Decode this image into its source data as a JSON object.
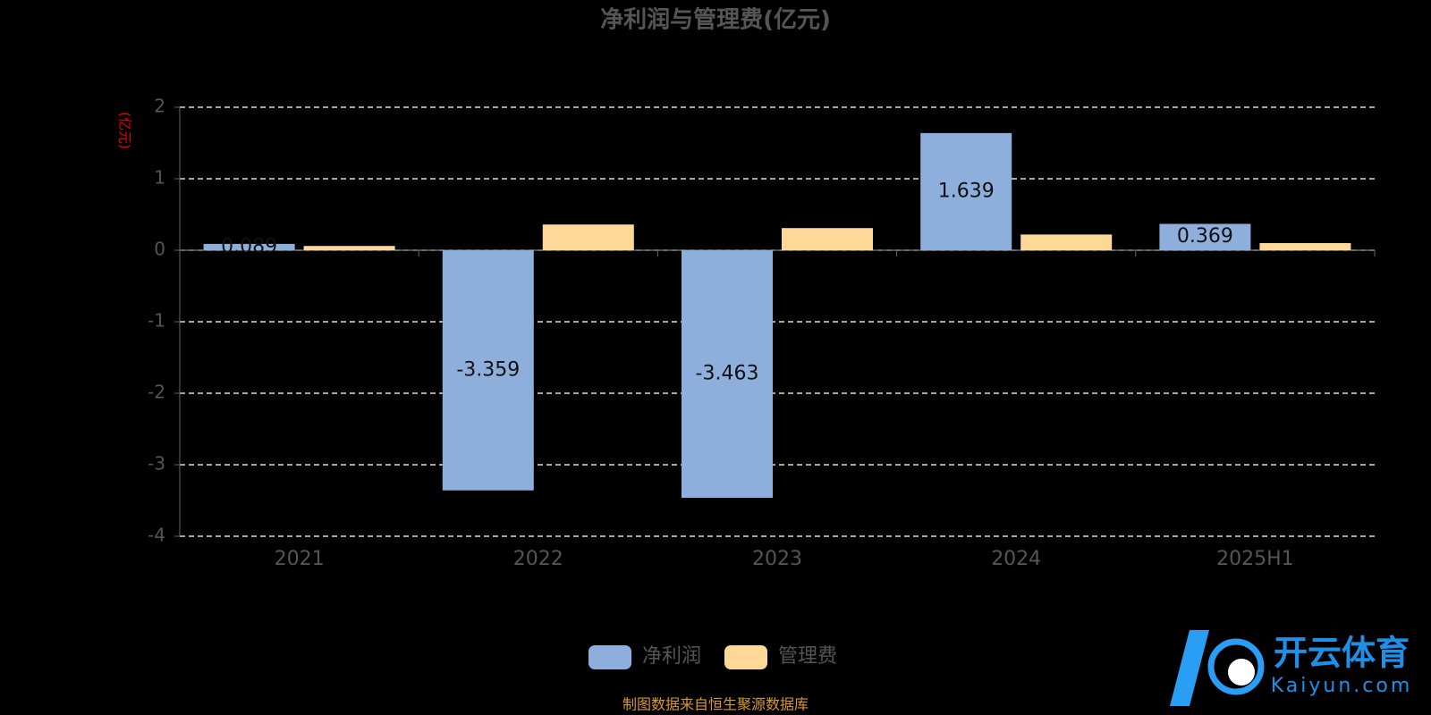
{
  "chart_data": {
    "type": "bar",
    "title": "净利润与管理费(亿元)",
    "y_label": "(亿元)",
    "categories": [
      "2021",
      "2022",
      "2023",
      "2024",
      "2025H1"
    ],
    "series": [
      {
        "name": "净利润",
        "color": "#8eaedb",
        "values": [
          0.089,
          -3.359,
          -3.463,
          1.639,
          0.369
        ]
      },
      {
        "name": "管理费",
        "color": "#fdd896",
        "values": [
          0.06,
          0.36,
          0.31,
          0.22,
          0.1
        ]
      }
    ],
    "ylim": [
      -4,
      2
    ],
    "yticks": [
      -4,
      -3,
      -2,
      -1,
      0,
      1,
      2
    ],
    "grid": true,
    "legend": "bottom",
    "source": "制图数据来自恒生聚源数据库"
  },
  "watermark": {
    "brand": "开云体育",
    "url": "Kaiyun.com"
  }
}
